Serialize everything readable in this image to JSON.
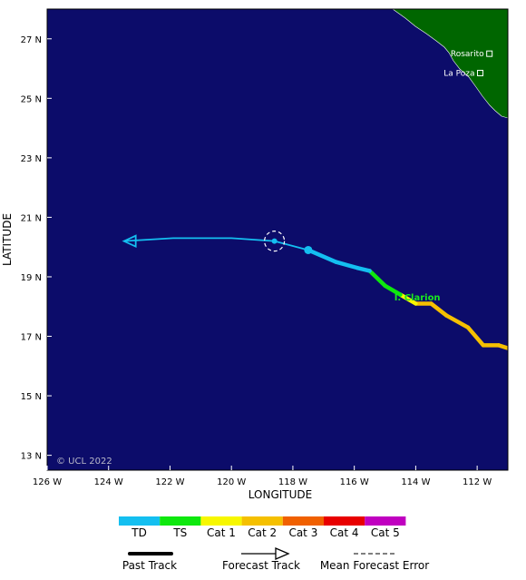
{
  "map": {
    "lon_range": [
      -126,
      -111
    ],
    "lat_range": [
      12.5,
      28
    ],
    "x_ticks": [
      {
        "lon": -126,
        "label": "126 W"
      },
      {
        "lon": -124,
        "label": "124 W"
      },
      {
        "lon": -122,
        "label": "122 W"
      },
      {
        "lon": -120,
        "label": "120 W"
      },
      {
        "lon": -118,
        "label": "118 W"
      },
      {
        "lon": -116,
        "label": "116 W"
      },
      {
        "lon": -114,
        "label": "114 W"
      },
      {
        "lon": -112,
        "label": "112 W"
      }
    ],
    "y_ticks": [
      {
        "lat": 27,
        "label": "27 N"
      },
      {
        "lat": 25,
        "label": "25 N"
      },
      {
        "lat": 23,
        "label": "23 N"
      },
      {
        "lat": 21,
        "label": "21 N"
      },
      {
        "lat": 19,
        "label": "19 N"
      },
      {
        "lat": 17,
        "label": "17 N"
      },
      {
        "lat": 15,
        "label": "15 N"
      },
      {
        "lat": 13,
        "label": "13 N"
      }
    ],
    "xlabel": "LONGITUDE",
    "ylabel": "LATITUDE",
    "copyright": "© UCL 2022",
    "colors": {
      "ocean": "#0c0c6a",
      "land": "#006600",
      "TD": "#14bff0",
      "TS": "#0ee80e",
      "Cat1": "#f7f700",
      "Cat2": "#f5c000",
      "Cat3": "#f06000",
      "Cat4": "#e80000",
      "Cat5": "#c000c0"
    },
    "places": [
      {
        "name": "Rosarito",
        "lon": -111.6,
        "lat": 26.5
      },
      {
        "name": "La Poza",
        "lon": -111.9,
        "lat": 25.85
      }
    ],
    "island": {
      "name": "I. Clarion",
      "lon": -114.7,
      "lat": 18.2
    },
    "past_track": [
      {
        "lon": -111,
        "lat": 16.6,
        "cat": "Cat2"
      },
      {
        "lon": -111.3,
        "lat": 16.7,
        "cat": "Cat2"
      },
      {
        "lon": -111.8,
        "lat": 16.7,
        "cat": "Cat2"
      },
      {
        "lon": -112.3,
        "lat": 17.3,
        "cat": "Cat2"
      },
      {
        "lon": -113.0,
        "lat": 17.7,
        "cat": "Cat2"
      },
      {
        "lon": -113.5,
        "lat": 18.1,
        "cat": "Cat2"
      },
      {
        "lon": -114.0,
        "lat": 18.1,
        "cat": "Cat1"
      },
      {
        "lon": -114.5,
        "lat": 18.4,
        "cat": "TS"
      },
      {
        "lon": -115.0,
        "lat": 18.7,
        "cat": "TS"
      },
      {
        "lon": -115.5,
        "lat": 19.2,
        "cat": "TD"
      },
      {
        "lon": -115.9,
        "lat": 19.3,
        "cat": "TD"
      },
      {
        "lon": -116.6,
        "lat": 19.5,
        "cat": "TD"
      },
      {
        "lon": -117.5,
        "lat": 19.9,
        "cat": "TD"
      }
    ],
    "forecast_track": [
      {
        "lon": -117.5,
        "lat": 19.9
      },
      {
        "lon": -118.6,
        "lat": 20.2
      },
      {
        "lon": -120.0,
        "lat": 20.3
      },
      {
        "lon": -121.9,
        "lat": 20.3
      },
      {
        "lon": -123.5,
        "lat": 20.2
      }
    ],
    "current_position": {
      "lon": -117.5,
      "lat": 19.9
    },
    "forecast_point": {
      "lon": -118.6,
      "lat": 20.2
    }
  },
  "legend": {
    "categories": [
      {
        "key": "TD",
        "label": "TD"
      },
      {
        "key": "TS",
        "label": "TS"
      },
      {
        "key": "Cat1",
        "label": "Cat 1"
      },
      {
        "key": "Cat2",
        "label": "Cat 2"
      },
      {
        "key": "Cat3",
        "label": "Cat 3"
      },
      {
        "key": "Cat4",
        "label": "Cat 4"
      },
      {
        "key": "Cat5",
        "label": "Cat 5"
      }
    ],
    "past_track_label": "Past Track",
    "forecast_track_label": "Forecast Track",
    "error_label": "Mean Forecast Error"
  }
}
